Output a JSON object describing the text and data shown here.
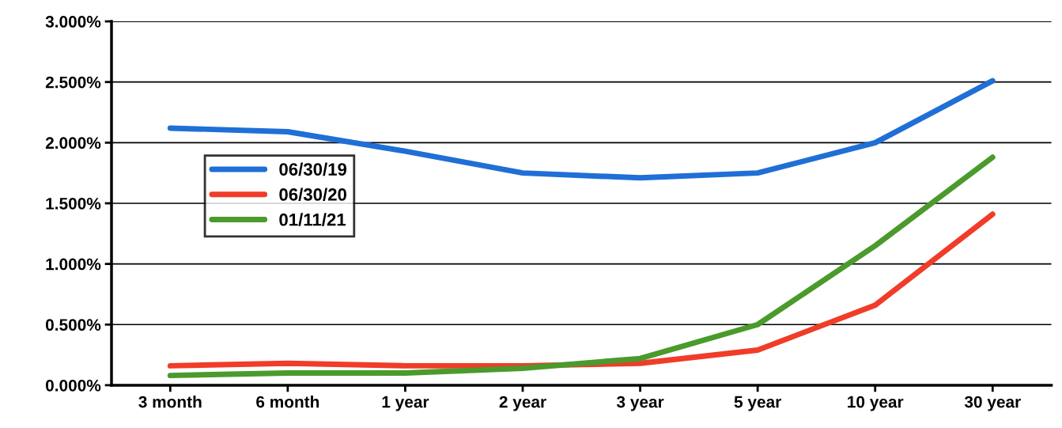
{
  "chart_data": {
    "type": "line",
    "categories": [
      "3 month",
      "6 month",
      "1 year",
      "2 year",
      "3 year",
      "5 year",
      "10 year",
      "30 year"
    ],
    "series": [
      {
        "name": "06/30/19",
        "color": "#1f6fd6",
        "values": [
          2.12,
          2.09,
          1.93,
          1.75,
          1.71,
          1.75,
          2.0,
          2.51
        ]
      },
      {
        "name": "06/30/20",
        "color": "#f03c28",
        "values": [
          0.16,
          0.18,
          0.16,
          0.16,
          0.18,
          0.29,
          0.66,
          1.41
        ]
      },
      {
        "name": "01/11/21",
        "color": "#4a9a2c",
        "values": [
          0.08,
          0.1,
          0.1,
          0.14,
          0.22,
          0.5,
          1.15,
          1.88
        ]
      }
    ],
    "ylim": [
      0,
      3
    ],
    "yticks": [
      {
        "value": 0,
        "label": "0.000%"
      },
      {
        "value": 0.5,
        "label": "0.500%"
      },
      {
        "value": 1,
        "label": "1.000%"
      },
      {
        "value": 1.5,
        "label": "1.500%"
      },
      {
        "value": 2,
        "label": "2.000%"
      },
      {
        "value": 2.5,
        "label": "2.500%"
      },
      {
        "value": 3,
        "label": "3.000%"
      }
    ],
    "grid": "y",
    "legend": "left",
    "marker": "none",
    "line_style": "solid"
  }
}
